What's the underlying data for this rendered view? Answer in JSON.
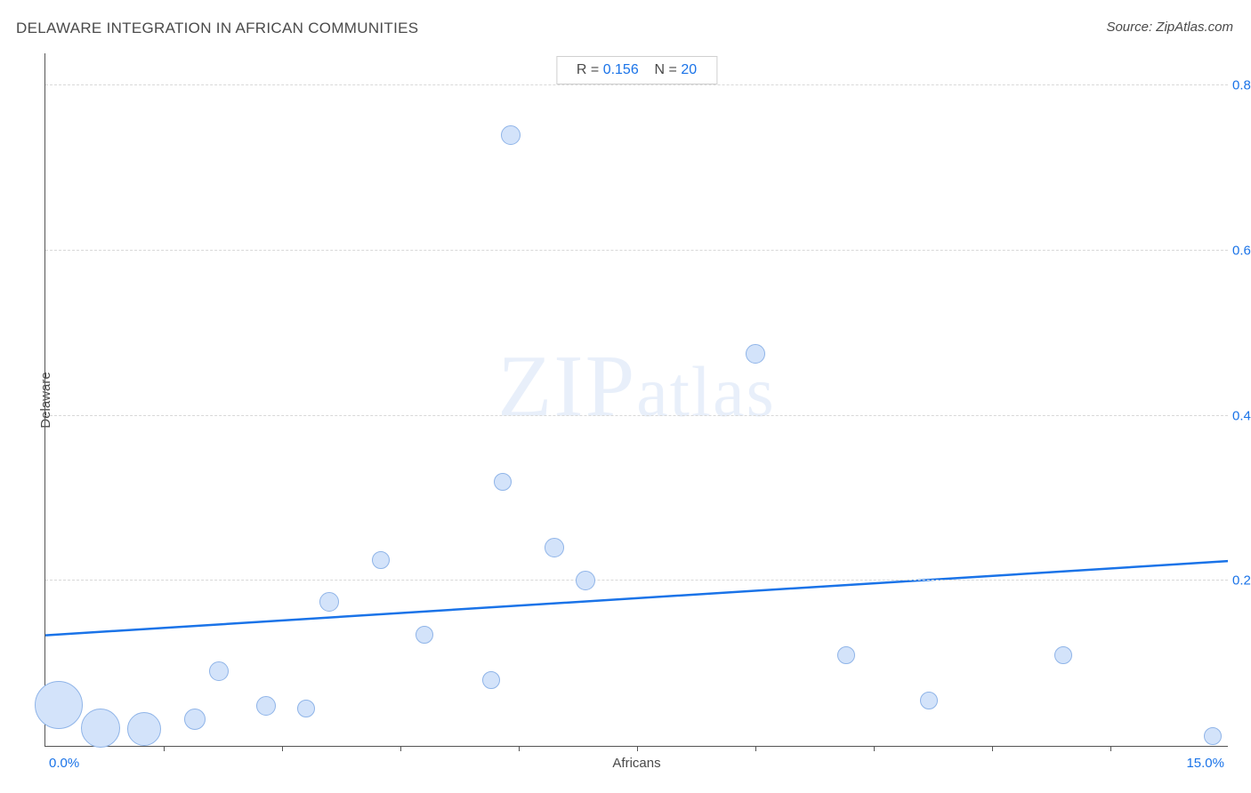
{
  "title": "DELAWARE INTEGRATION IN AFRICAN COMMUNITIES",
  "source": "Source: ZipAtlas.com",
  "watermark_big": "ZIP",
  "watermark_small": "atlas",
  "chart": {
    "type": "scatter",
    "xlabel": "Africans",
    "ylabel": "Delaware",
    "xlim": [
      0.0,
      15.0
    ],
    "ylim": [
      0.0,
      0.84
    ],
    "xtick_start": "0.0%",
    "xtick_end": "15.0%",
    "xtick_minor_positions": [
      1.5,
      3.0,
      4.5,
      6.0,
      7.5,
      9.0,
      10.5,
      12.0,
      13.5
    ],
    "yticks": [
      {
        "v": 0.2,
        "label": "0.2%"
      },
      {
        "v": 0.4,
        "label": "0.4%"
      },
      {
        "v": 0.6,
        "label": "0.6%"
      },
      {
        "v": 0.8,
        "label": "0.8%"
      }
    ],
    "stats": {
      "r_label": "R = ",
      "r_value": "0.156",
      "n_label": "N = ",
      "n_value": "20"
    },
    "regression": {
      "y_at_xmin": 0.135,
      "y_at_xmax": 0.225,
      "color": "#1a73e8",
      "width": 2.5
    },
    "bubble_fill": "#d3e3fa",
    "bubble_stroke": "#8fb4e8",
    "background_color": "#ffffff",
    "grid_color": "#d8d8d8",
    "title_color": "#4a4a4a",
    "tick_label_color": "#1a73e8",
    "points": [
      {
        "x": 0.17,
        "y": 0.05,
        "r": 27
      },
      {
        "x": 0.7,
        "y": 0.022,
        "r": 22
      },
      {
        "x": 1.25,
        "y": 0.02,
        "r": 19
      },
      {
        "x": 1.9,
        "y": 0.032,
        "r": 12
      },
      {
        "x": 2.2,
        "y": 0.09,
        "r": 11
      },
      {
        "x": 2.8,
        "y": 0.048,
        "r": 11
      },
      {
        "x": 3.3,
        "y": 0.045,
        "r": 10
      },
      {
        "x": 3.6,
        "y": 0.175,
        "r": 11
      },
      {
        "x": 4.25,
        "y": 0.225,
        "r": 10
      },
      {
        "x": 4.8,
        "y": 0.135,
        "r": 10
      },
      {
        "x": 5.65,
        "y": 0.08,
        "r": 10
      },
      {
        "x": 5.8,
        "y": 0.32,
        "r": 10
      },
      {
        "x": 5.9,
        "y": 0.74,
        "r": 11
      },
      {
        "x": 6.45,
        "y": 0.24,
        "r": 11
      },
      {
        "x": 6.85,
        "y": 0.2,
        "r": 11
      },
      {
        "x": 9.0,
        "y": 0.475,
        "r": 11
      },
      {
        "x": 10.15,
        "y": 0.11,
        "r": 10
      },
      {
        "x": 11.2,
        "y": 0.055,
        "r": 10
      },
      {
        "x": 12.9,
        "y": 0.11,
        "r": 10
      },
      {
        "x": 14.8,
        "y": 0.012,
        "r": 10
      }
    ]
  }
}
